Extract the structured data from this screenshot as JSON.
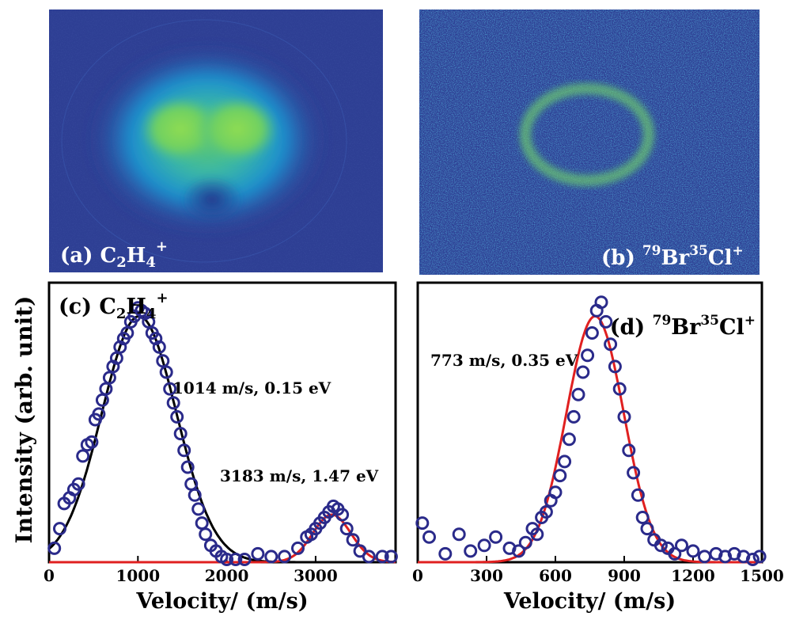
{
  "chart_data": [
    {
      "type": "heatmap",
      "panel_label": "(a)",
      "species": {
        "base1": "C",
        "sub1": "2",
        "base2": "H",
        "sub2": "4",
        "sup": "+"
      },
      "description_colors": {
        "background": "#2e3f94",
        "mid": "#1aa0d6",
        "peak": "#7ed25e"
      }
    },
    {
      "type": "heatmap",
      "panel_label": "(b)",
      "species": {
        "sup1": "79",
        "base1": "Br",
        "sup2": "35",
        "base2": "Cl",
        "sup3": "+"
      },
      "description_colors": {
        "background": "#2e3f94",
        "mid": "#1aa0d6",
        "peak": "#7ed25e"
      }
    },
    {
      "type": "scatter",
      "panel_label": "(c)",
      "species": {
        "base1": "C",
        "sub1": "2",
        "base2": "H",
        "sub2": "4",
        "sup": "+"
      },
      "xlabel": "Velocity/ (m/s)",
      "ylabel": "Intensity (arb. unit)",
      "xlim": [
        0,
        3900
      ],
      "ylim": [
        0,
        1.0
      ],
      "xticks": [
        0,
        1000,
        2000,
        3000
      ],
      "annotations": [
        "1014 m/s, 0.15 eV",
        "3183 m/s, 1.47 eV"
      ],
      "points": {
        "x": [
          60,
          120,
          170,
          230,
          280,
          330,
          380,
          430,
          480,
          520,
          560,
          600,
          640,
          680,
          720,
          760,
          800,
          840,
          880,
          920,
          960,
          1000,
          1040,
          1080,
          1120,
          1160,
          1200,
          1240,
          1280,
          1320,
          1360,
          1400,
          1440,
          1480,
          1520,
          1560,
          1600,
          1640,
          1680,
          1720,
          1760,
          1820,
          1880,
          1940,
          2000,
          2100,
          2200,
          2350,
          2500,
          2650,
          2800,
          2900,
          2950,
          3000,
          3050,
          3100,
          3150,
          3200,
          3250,
          3300,
          3350,
          3420,
          3500,
          3600,
          3750,
          3850
        ],
        "y": [
          0.05,
          0.12,
          0.21,
          0.23,
          0.26,
          0.28,
          0.38,
          0.42,
          0.43,
          0.51,
          0.53,
          0.58,
          0.62,
          0.66,
          0.7,
          0.73,
          0.77,
          0.8,
          0.82,
          0.86,
          0.88,
          0.91,
          0.9,
          0.89,
          0.86,
          0.82,
          0.8,
          0.77,
          0.72,
          0.68,
          0.62,
          0.57,
          0.52,
          0.46,
          0.4,
          0.34,
          0.28,
          0.24,
          0.19,
          0.14,
          0.1,
          0.06,
          0.04,
          0.02,
          0.01,
          0.01,
          0.01,
          0.03,
          0.02,
          0.02,
          0.05,
          0.09,
          0.1,
          0.12,
          0.14,
          0.16,
          0.18,
          0.2,
          0.19,
          0.17,
          0.12,
          0.08,
          0.04,
          0.02,
          0.02,
          0.02
        ]
      },
      "series": [
        {
          "name": "",
          "color": "#000000",
          "peak_x": 1014,
          "amplitude": 0.88,
          "sigma": 420
        },
        {
          "name": "",
          "color": "#e02020",
          "peak_x": 3183,
          "amplitude": 0.17,
          "sigma": 215
        }
      ],
      "marker_color": "#2a2a8a"
    },
    {
      "type": "scatter",
      "panel_label": "(d)",
      "species": {
        "sup1": "79",
        "base1": "Br",
        "sup2": "35",
        "base2": "Cl",
        "sup3": "+"
      },
      "xlabel": "Velocity/ (m/s)",
      "xlim": [
        0,
        1500
      ],
      "ylim": [
        0,
        1.0
      ],
      "xticks": [
        0,
        300,
        600,
        900,
        1200,
        1500
      ],
      "annotations": [
        "773 m/s, 0.35 eV"
      ],
      "points": {
        "x": [
          20,
          50,
          120,
          180,
          230,
          290,
          340,
          400,
          440,
          470,
          500,
          520,
          540,
          560,
          580,
          600,
          620,
          640,
          660,
          680,
          700,
          720,
          740,
          760,
          780,
          800,
          820,
          840,
          860,
          880,
          900,
          920,
          940,
          960,
          980,
          1000,
          1030,
          1060,
          1090,
          1120,
          1150,
          1200,
          1250,
          1300,
          1340,
          1380,
          1420,
          1460,
          1490
        ],
        "y": [
          0.14,
          0.09,
          0.03,
          0.1,
          0.04,
          0.06,
          0.09,
          0.05,
          0.04,
          0.07,
          0.12,
          0.1,
          0.16,
          0.18,
          0.22,
          0.25,
          0.31,
          0.36,
          0.44,
          0.52,
          0.6,
          0.68,
          0.74,
          0.82,
          0.9,
          0.93,
          0.86,
          0.78,
          0.7,
          0.62,
          0.52,
          0.4,
          0.32,
          0.24,
          0.16,
          0.12,
          0.08,
          0.06,
          0.05,
          0.03,
          0.06,
          0.04,
          0.02,
          0.03,
          0.02,
          0.03,
          0.02,
          0.01,
          0.02
        ]
      },
      "series": [
        {
          "name": "",
          "color": "#e02020",
          "peak_x": 773,
          "amplitude": 0.88,
          "sigma": 125
        }
      ],
      "marker_color": "#2a2a8a"
    }
  ]
}
